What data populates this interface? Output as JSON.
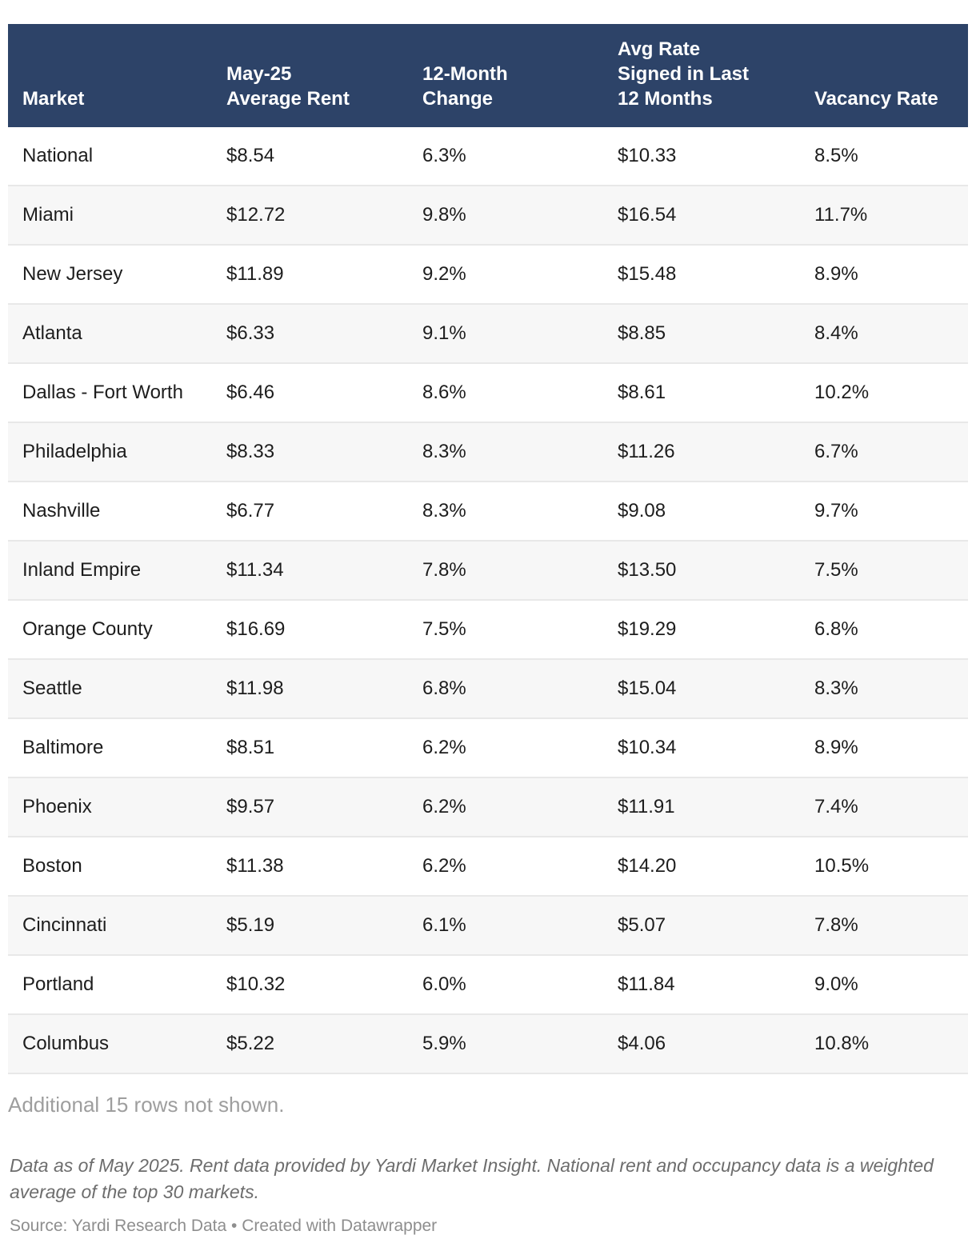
{
  "colors": {
    "header_bg": "#2d4368",
    "header_text": "#ffffff",
    "row_bg": "#ffffff",
    "row_alt_bg": "#f7f7f7",
    "row_border": "#e8e8e8",
    "body_text": "#1d1d1d",
    "muted_text": "#9e9e9e",
    "notes_text": "#6d6d6d",
    "source_text": "#8e8e8e"
  },
  "chart_data": {
    "type": "table",
    "columns": [
      {
        "key": "market",
        "label": "Market"
      },
      {
        "key": "rent",
        "label": "May-25\nAverage Rent"
      },
      {
        "key": "change",
        "label": "12-Month\nChange"
      },
      {
        "key": "avg_rate",
        "label": "Avg Rate\nSigned in Last\n12 Months"
      },
      {
        "key": "vacancy",
        "label": "Vacancy Rate"
      }
    ],
    "rows": [
      {
        "market": "National",
        "rent": "$8.54",
        "change": "6.3%",
        "avg_rate": "$10.33",
        "vacancy": "8.5%"
      },
      {
        "market": "Miami",
        "rent": "$12.72",
        "change": "9.8%",
        "avg_rate": "$16.54",
        "vacancy": "11.7%"
      },
      {
        "market": "New Jersey",
        "rent": "$11.89",
        "change": "9.2%",
        "avg_rate": "$15.48",
        "vacancy": "8.9%"
      },
      {
        "market": "Atlanta",
        "rent": "$6.33",
        "change": "9.1%",
        "avg_rate": "$8.85",
        "vacancy": "8.4%"
      },
      {
        "market": "Dallas - Fort Worth",
        "rent": "$6.46",
        "change": "8.6%",
        "avg_rate": "$8.61",
        "vacancy": "10.2%"
      },
      {
        "market": "Philadelphia",
        "rent": "$8.33",
        "change": "8.3%",
        "avg_rate": "$11.26",
        "vacancy": "6.7%"
      },
      {
        "market": "Nashville",
        "rent": "$6.77",
        "change": "8.3%",
        "avg_rate": "$9.08",
        "vacancy": "9.7%"
      },
      {
        "market": "Inland Empire",
        "rent": "$11.34",
        "change": "7.8%",
        "avg_rate": "$13.50",
        "vacancy": "7.5%"
      },
      {
        "market": "Orange County",
        "rent": "$16.69",
        "change": "7.5%",
        "avg_rate": "$19.29",
        "vacancy": "6.8%"
      },
      {
        "market": "Seattle",
        "rent": "$11.98",
        "change": "6.8%",
        "avg_rate": "$15.04",
        "vacancy": "8.3%"
      },
      {
        "market": "Baltimore",
        "rent": "$8.51",
        "change": "6.2%",
        "avg_rate": "$10.34",
        "vacancy": "8.9%"
      },
      {
        "market": "Phoenix",
        "rent": "$9.57",
        "change": "6.2%",
        "avg_rate": "$11.91",
        "vacancy": "7.4%"
      },
      {
        "market": "Boston",
        "rent": "$11.38",
        "change": "6.2%",
        "avg_rate": "$14.20",
        "vacancy": "10.5%"
      },
      {
        "market": "Cincinnati",
        "rent": "$5.19",
        "change": "6.1%",
        "avg_rate": "$5.07",
        "vacancy": "7.8%"
      },
      {
        "market": "Portland",
        "rent": "$10.32",
        "change": "6.0%",
        "avg_rate": "$11.84",
        "vacancy": "9.0%"
      },
      {
        "market": "Columbus",
        "rent": "$5.22",
        "change": "5.9%",
        "avg_rate": "$4.06",
        "vacancy": "10.8%"
      }
    ],
    "rows_not_shown_note": "Additional 15 rows not shown.",
    "notes": "Data as of May 2025. Rent data provided by Yardi Market Insight. National rent and occupancy data is a weighted average of the top 30 markets.",
    "source": "Source: Yardi Research Data • Created with Datawrapper"
  }
}
